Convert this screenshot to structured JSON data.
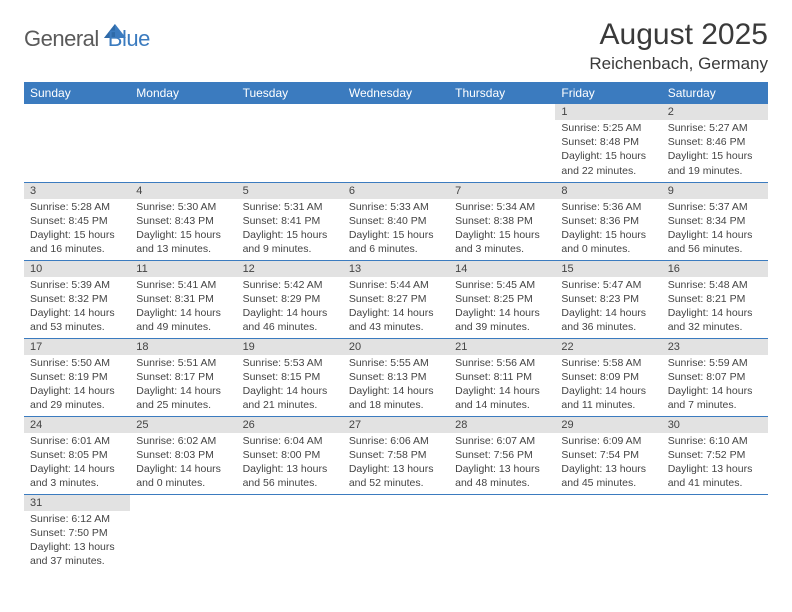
{
  "logo": {
    "dark": "General",
    "blue": "Blue"
  },
  "title": "August 2025",
  "location": "Reichenbach, Germany",
  "colors": {
    "header_bg": "#3b7bbf",
    "header_text": "#ffffff",
    "daynum_bg": "#e2e2e2",
    "border": "#3b7bbf",
    "text": "#444444"
  },
  "weekdays": [
    "Sunday",
    "Monday",
    "Tuesday",
    "Wednesday",
    "Thursday",
    "Friday",
    "Saturday"
  ],
  "days": {
    "1": {
      "sunrise": "Sunrise: 5:25 AM",
      "sunset": "Sunset: 8:48 PM",
      "daylight": "Daylight: 15 hours and 22 minutes."
    },
    "2": {
      "sunrise": "Sunrise: 5:27 AM",
      "sunset": "Sunset: 8:46 PM",
      "daylight": "Daylight: 15 hours and 19 minutes."
    },
    "3": {
      "sunrise": "Sunrise: 5:28 AM",
      "sunset": "Sunset: 8:45 PM",
      "daylight": "Daylight: 15 hours and 16 minutes."
    },
    "4": {
      "sunrise": "Sunrise: 5:30 AM",
      "sunset": "Sunset: 8:43 PM",
      "daylight": "Daylight: 15 hours and 13 minutes."
    },
    "5": {
      "sunrise": "Sunrise: 5:31 AM",
      "sunset": "Sunset: 8:41 PM",
      "daylight": "Daylight: 15 hours and 9 minutes."
    },
    "6": {
      "sunrise": "Sunrise: 5:33 AM",
      "sunset": "Sunset: 8:40 PM",
      "daylight": "Daylight: 15 hours and 6 minutes."
    },
    "7": {
      "sunrise": "Sunrise: 5:34 AM",
      "sunset": "Sunset: 8:38 PM",
      "daylight": "Daylight: 15 hours and 3 minutes."
    },
    "8": {
      "sunrise": "Sunrise: 5:36 AM",
      "sunset": "Sunset: 8:36 PM",
      "daylight": "Daylight: 15 hours and 0 minutes."
    },
    "9": {
      "sunrise": "Sunrise: 5:37 AM",
      "sunset": "Sunset: 8:34 PM",
      "daylight": "Daylight: 14 hours and 56 minutes."
    },
    "10": {
      "sunrise": "Sunrise: 5:39 AM",
      "sunset": "Sunset: 8:32 PM",
      "daylight": "Daylight: 14 hours and 53 minutes."
    },
    "11": {
      "sunrise": "Sunrise: 5:41 AM",
      "sunset": "Sunset: 8:31 PM",
      "daylight": "Daylight: 14 hours and 49 minutes."
    },
    "12": {
      "sunrise": "Sunrise: 5:42 AM",
      "sunset": "Sunset: 8:29 PM",
      "daylight": "Daylight: 14 hours and 46 minutes."
    },
    "13": {
      "sunrise": "Sunrise: 5:44 AM",
      "sunset": "Sunset: 8:27 PM",
      "daylight": "Daylight: 14 hours and 43 minutes."
    },
    "14": {
      "sunrise": "Sunrise: 5:45 AM",
      "sunset": "Sunset: 8:25 PM",
      "daylight": "Daylight: 14 hours and 39 minutes."
    },
    "15": {
      "sunrise": "Sunrise: 5:47 AM",
      "sunset": "Sunset: 8:23 PM",
      "daylight": "Daylight: 14 hours and 36 minutes."
    },
    "16": {
      "sunrise": "Sunrise: 5:48 AM",
      "sunset": "Sunset: 8:21 PM",
      "daylight": "Daylight: 14 hours and 32 minutes."
    },
    "17": {
      "sunrise": "Sunrise: 5:50 AM",
      "sunset": "Sunset: 8:19 PM",
      "daylight": "Daylight: 14 hours and 29 minutes."
    },
    "18": {
      "sunrise": "Sunrise: 5:51 AM",
      "sunset": "Sunset: 8:17 PM",
      "daylight": "Daylight: 14 hours and 25 minutes."
    },
    "19": {
      "sunrise": "Sunrise: 5:53 AM",
      "sunset": "Sunset: 8:15 PM",
      "daylight": "Daylight: 14 hours and 21 minutes."
    },
    "20": {
      "sunrise": "Sunrise: 5:55 AM",
      "sunset": "Sunset: 8:13 PM",
      "daylight": "Daylight: 14 hours and 18 minutes."
    },
    "21": {
      "sunrise": "Sunrise: 5:56 AM",
      "sunset": "Sunset: 8:11 PM",
      "daylight": "Daylight: 14 hours and 14 minutes."
    },
    "22": {
      "sunrise": "Sunrise: 5:58 AM",
      "sunset": "Sunset: 8:09 PM",
      "daylight": "Daylight: 14 hours and 11 minutes."
    },
    "23": {
      "sunrise": "Sunrise: 5:59 AM",
      "sunset": "Sunset: 8:07 PM",
      "daylight": "Daylight: 14 hours and 7 minutes."
    },
    "24": {
      "sunrise": "Sunrise: 6:01 AM",
      "sunset": "Sunset: 8:05 PM",
      "daylight": "Daylight: 14 hours and 3 minutes."
    },
    "25": {
      "sunrise": "Sunrise: 6:02 AM",
      "sunset": "Sunset: 8:03 PM",
      "daylight": "Daylight: 14 hours and 0 minutes."
    },
    "26": {
      "sunrise": "Sunrise: 6:04 AM",
      "sunset": "Sunset: 8:00 PM",
      "daylight": "Daylight: 13 hours and 56 minutes."
    },
    "27": {
      "sunrise": "Sunrise: 6:06 AM",
      "sunset": "Sunset: 7:58 PM",
      "daylight": "Daylight: 13 hours and 52 minutes."
    },
    "28": {
      "sunrise": "Sunrise: 6:07 AM",
      "sunset": "Sunset: 7:56 PM",
      "daylight": "Daylight: 13 hours and 48 minutes."
    },
    "29": {
      "sunrise": "Sunrise: 6:09 AM",
      "sunset": "Sunset: 7:54 PM",
      "daylight": "Daylight: 13 hours and 45 minutes."
    },
    "30": {
      "sunrise": "Sunrise: 6:10 AM",
      "sunset": "Sunset: 7:52 PM",
      "daylight": "Daylight: 13 hours and 41 minutes."
    },
    "31": {
      "sunrise": "Sunrise: 6:12 AM",
      "sunset": "Sunset: 7:50 PM",
      "daylight": "Daylight: 13 hours and 37 minutes."
    }
  },
  "grid": [
    [
      null,
      null,
      null,
      null,
      null,
      "1",
      "2"
    ],
    [
      "3",
      "4",
      "5",
      "6",
      "7",
      "8",
      "9"
    ],
    [
      "10",
      "11",
      "12",
      "13",
      "14",
      "15",
      "16"
    ],
    [
      "17",
      "18",
      "19",
      "20",
      "21",
      "22",
      "23"
    ],
    [
      "24",
      "25",
      "26",
      "27",
      "28",
      "29",
      "30"
    ],
    [
      "31",
      null,
      null,
      null,
      null,
      null,
      null
    ]
  ]
}
